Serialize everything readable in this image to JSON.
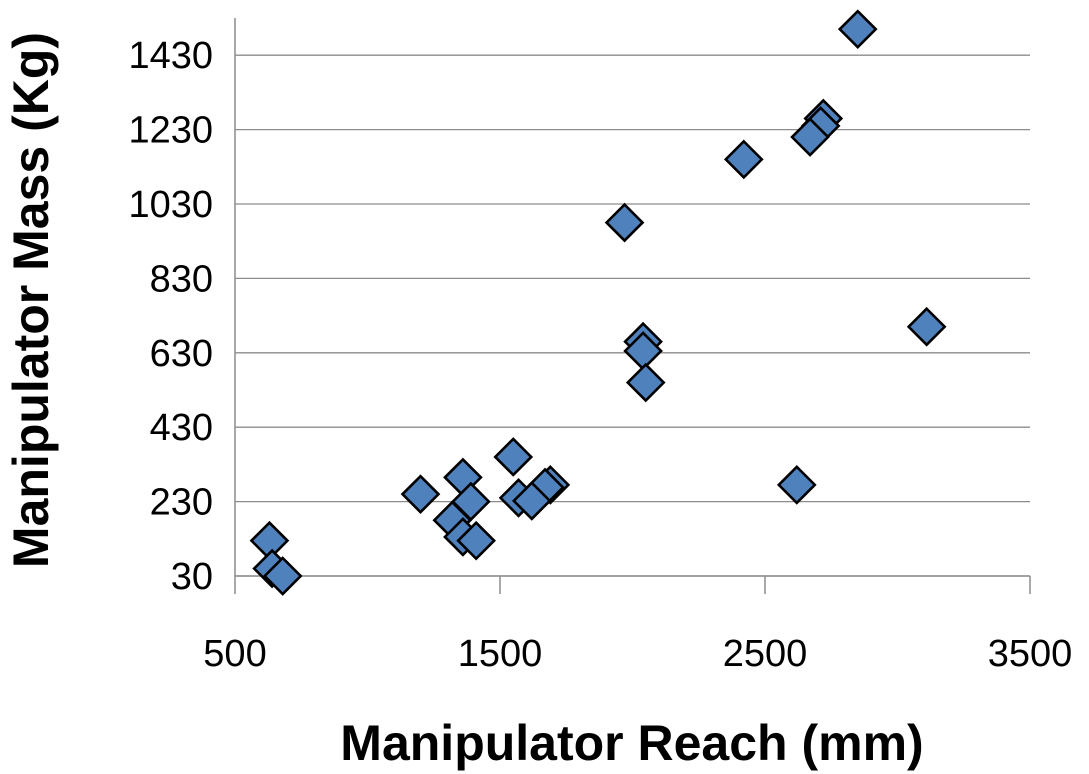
{
  "chart_data": {
    "type": "scatter",
    "title": "",
    "xlabel": "Manipulator Reach (mm)",
    "ylabel": "Manipulator Mass (Kg)",
    "xlim": [
      500,
      3500
    ],
    "ylim": [
      30,
      1530
    ],
    "x_ticks": [
      500,
      1500,
      2500,
      3500
    ],
    "y_ticks": [
      30,
      230,
      430,
      630,
      830,
      1030,
      1230,
      1430
    ],
    "grid": "horizontal",
    "legend": "none",
    "marker_color": "#4f81bd",
    "marker_shape": "diamond",
    "series": [
      {
        "points": [
          {
            "x": 2850,
            "y": 1500
          },
          {
            "x": 2720,
            "y": 1260
          },
          {
            "x": 2710,
            "y": 1240
          },
          {
            "x": 2670,
            "y": 1210
          },
          {
            "x": 2420,
            "y": 1150
          },
          {
            "x": 1970,
            "y": 980
          },
          {
            "x": 3110,
            "y": 700
          },
          {
            "x": 2040,
            "y": 660
          },
          {
            "x": 2040,
            "y": 635
          },
          {
            "x": 2050,
            "y": 550
          },
          {
            "x": 1550,
            "y": 350
          },
          {
            "x": 1360,
            "y": 295
          },
          {
            "x": 1690,
            "y": 275
          },
          {
            "x": 1670,
            "y": 268
          },
          {
            "x": 2620,
            "y": 275
          },
          {
            "x": 1200,
            "y": 250
          },
          {
            "x": 1570,
            "y": 240
          },
          {
            "x": 1620,
            "y": 232
          },
          {
            "x": 1390,
            "y": 230
          },
          {
            "x": 1320,
            "y": 180
          },
          {
            "x": 1360,
            "y": 135
          },
          {
            "x": 1410,
            "y": 125
          },
          {
            "x": 630,
            "y": 125
          },
          {
            "x": 640,
            "y": 50
          },
          {
            "x": 680,
            "y": 30
          }
        ]
      }
    ]
  }
}
